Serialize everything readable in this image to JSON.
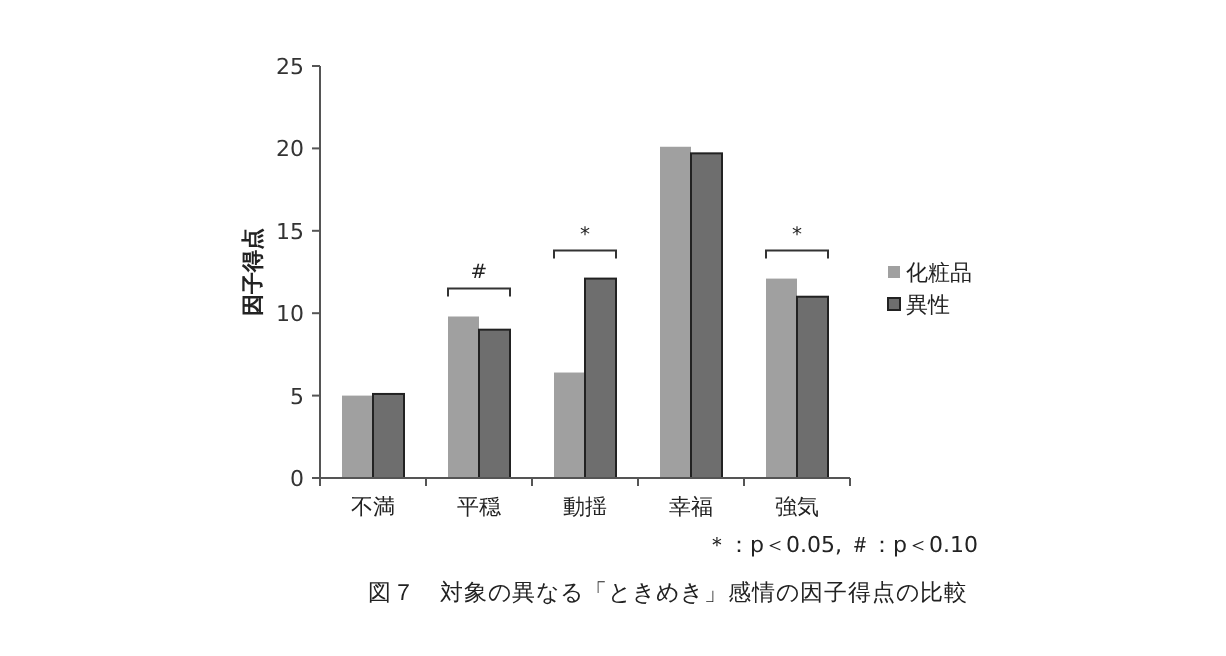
{
  "chart_data": {
    "type": "bar",
    "title": "図７　対象の異なる「ときめき」感情の因子得点の比較",
    "ylabel": "因子得点",
    "categories": [
      "不満",
      "平穏",
      "動揺",
      "幸福",
      "強気"
    ],
    "series": [
      {
        "name": "化粧品",
        "color": "#a0a0a0",
        "values": [
          5.0,
          9.8,
          6.4,
          20.1,
          12.1
        ]
      },
      {
        "name": "異性",
        "color": "#6e6e6e",
        "values": [
          5.1,
          9.0,
          12.1,
          19.7,
          11.0
        ]
      }
    ],
    "ylim": [
      0,
      25
    ],
    "yticks": [
      0,
      5,
      10,
      15,
      20,
      25
    ],
    "grid": false,
    "legend": "right",
    "annotations": [
      "#",
      "*",
      "*",
      "＊：p＜0.05, ＃：p＜0.10"
    ]
  }
}
